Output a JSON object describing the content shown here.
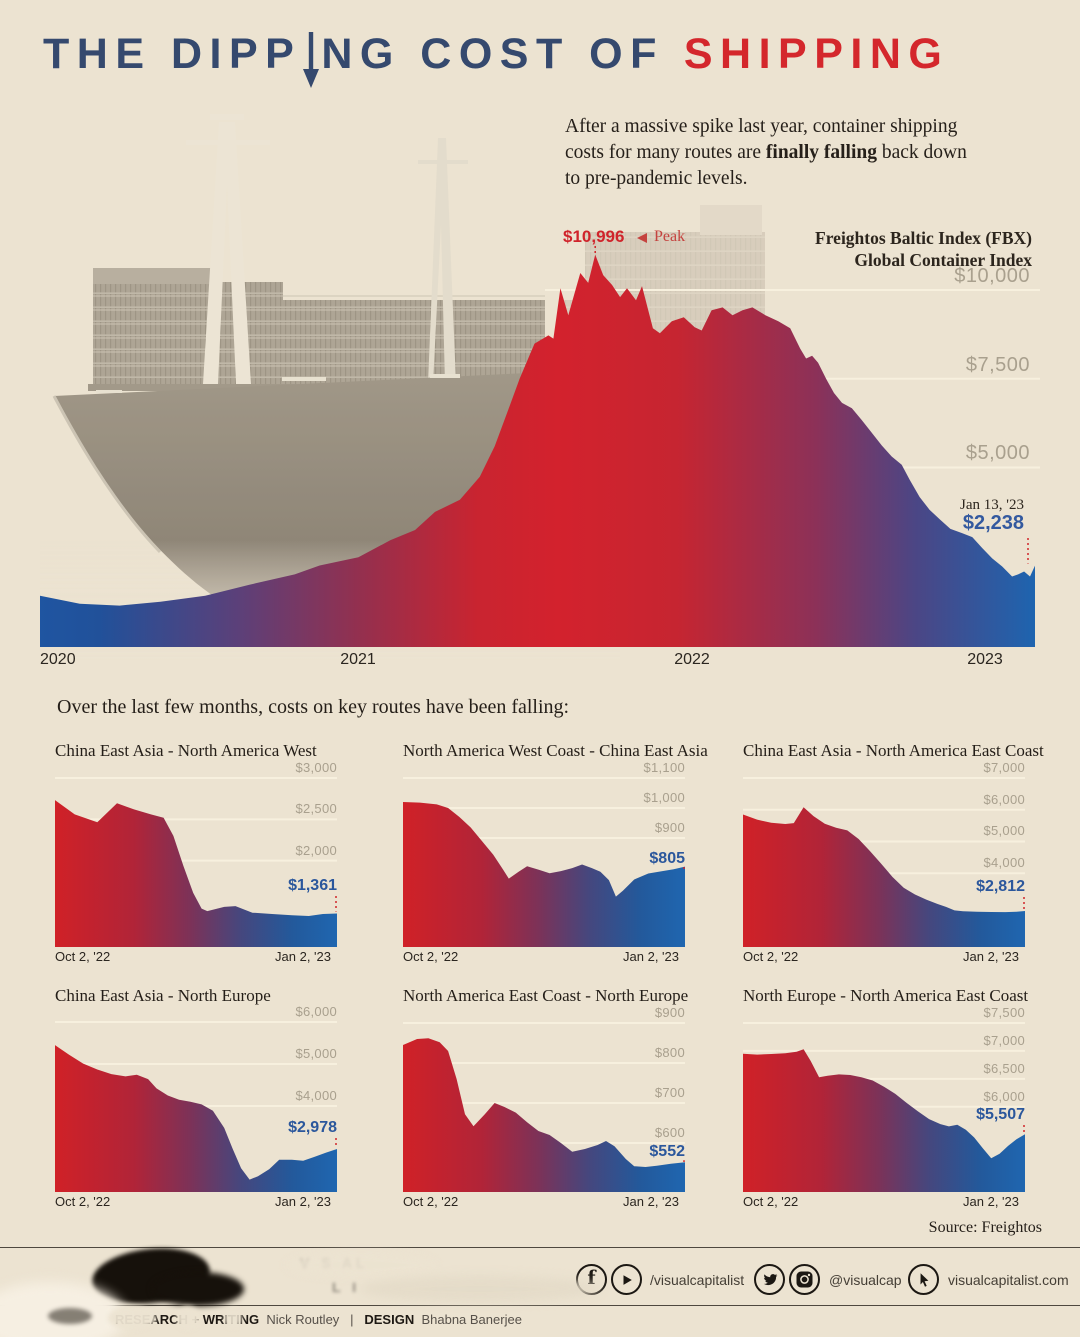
{
  "colors": {
    "background": "#ece3d1",
    "title_navy": "#35496e",
    "accent_red": "#d4272c",
    "value_blue": "#2b579c",
    "grid_label_gray": "#a9a08e",
    "area_blue": "#1e64af",
    "area_red": "#d3222d"
  },
  "title": {
    "part1": "THE DIPP",
    "part2": "NG COST OF",
    "part3": "SHIPPING"
  },
  "intro": {
    "line1": "After a massive spike last year, container shipping",
    "line2_pre": "costs for many routes are ",
    "line2_bold": "finally falling",
    "line2_post": " back down",
    "line3": "to pre-pandemic levels."
  },
  "routes_heading": "Over the last few months, costs on key routes have been falling:",
  "footer": {
    "source": "Source: Freightos",
    "social": {
      "group1_handle": "/visualcapitalist",
      "group2_handle": "@visualcap",
      "group3_handle": "visualcapitalist.com"
    },
    "credits": {
      "role1": "RESEARCH + WRITING",
      "name1": "Nick Routley",
      "divider": "|",
      "role2": "DESIGN",
      "name2": "Bhabna Banerjee"
    }
  },
  "chart_data": [
    {
      "type": "area",
      "title_line1": "Freightos Baltic Index (FBX)",
      "title_line2": "Global Container Index",
      "peak": {
        "label": "$10,996",
        "tag": "Peak",
        "value": 10996,
        "frac": 0.558
      },
      "end": {
        "date": "Jan 13, '23",
        "label": "$2,238",
        "value": 2238
      },
      "grid_values": [
        10000,
        7500,
        5000
      ],
      "grid_labels": [
        "$10,000",
        "$7,500",
        "$5,000"
      ],
      "x_tick_labels": [
        "2020",
        "2021",
        "2022",
        "2023"
      ],
      "ylim": [
        0,
        11500
      ],
      "points": [
        [
          0,
          1390
        ],
        [
          0.04,
          1160
        ],
        [
          0.08,
          1110
        ],
        [
          0.121,
          1220
        ],
        [
          0.166,
          1390
        ],
        [
          0.211,
          1700
        ],
        [
          0.256,
          1990
        ],
        [
          0.281,
          2240
        ],
        [
          0.32,
          2470
        ],
        [
          0.352,
          2950
        ],
        [
          0.377,
          3240
        ],
        [
          0.397,
          3750
        ],
        [
          0.422,
          4090
        ],
        [
          0.442,
          4740
        ],
        [
          0.457,
          5600
        ],
        [
          0.472,
          6730
        ],
        [
          0.482,
          7500
        ],
        [
          0.497,
          8490
        ],
        [
          0.511,
          8720
        ],
        [
          0.516,
          8630
        ],
        [
          0.523,
          10050
        ],
        [
          0.531,
          9290
        ],
        [
          0.543,
          10480
        ],
        [
          0.551,
          10200
        ],
        [
          0.558,
          10996
        ],
        [
          0.566,
          10420
        ],
        [
          0.575,
          10140
        ],
        [
          0.583,
          9800
        ],
        [
          0.59,
          10050
        ],
        [
          0.599,
          9710
        ],
        [
          0.605,
          10110
        ],
        [
          0.616,
          8920
        ],
        [
          0.623,
          8780
        ],
        [
          0.635,
          9120
        ],
        [
          0.647,
          9230
        ],
        [
          0.658,
          8950
        ],
        [
          0.665,
          8860
        ],
        [
          0.675,
          9430
        ],
        [
          0.686,
          9510
        ],
        [
          0.696,
          9290
        ],
        [
          0.706,
          9430
        ],
        [
          0.716,
          9510
        ],
        [
          0.729,
          9290
        ],
        [
          0.742,
          9120
        ],
        [
          0.754,
          8920
        ],
        [
          0.764,
          8350
        ],
        [
          0.77,
          8070
        ],
        [
          0.776,
          8150
        ],
        [
          0.782,
          7950
        ],
        [
          0.79,
          7500
        ],
        [
          0.798,
          7100
        ],
        [
          0.806,
          6820
        ],
        [
          0.816,
          6670
        ],
        [
          0.826,
          6330
        ],
        [
          0.834,
          6050
        ],
        [
          0.846,
          5620
        ],
        [
          0.856,
          5310
        ],
        [
          0.866,
          5080
        ],
        [
          0.874,
          4660
        ],
        [
          0.884,
          4170
        ],
        [
          0.894,
          3810
        ],
        [
          0.905,
          3520
        ],
        [
          0.915,
          3270
        ],
        [
          0.927,
          3150
        ],
        [
          0.937,
          3040
        ],
        [
          0.947,
          2730
        ],
        [
          0.957,
          2440
        ],
        [
          0.967,
          2210
        ],
        [
          0.977,
          1930
        ],
        [
          0.983,
          1990
        ],
        [
          0.989,
          2070
        ],
        [
          0.995,
          1930
        ],
        [
          1,
          2238
        ]
      ]
    },
    {
      "type": "area",
      "title": "China East Asia - North America West",
      "grid_values": [
        3000,
        2500,
        2000
      ],
      "grid_labels": [
        "$3,000",
        "$2,500",
        "$2,000"
      ],
      "end_label": "$1,361",
      "end_value": 1361,
      "x_left": "Oct 2, '22",
      "x_right": "Jan 2, '23",
      "points": [
        [
          0,
          2732
        ],
        [
          0.07,
          2560
        ],
        [
          0.15,
          2465
        ],
        [
          0.22,
          2695
        ],
        [
          0.28,
          2620
        ],
        [
          0.34,
          2560
        ],
        [
          0.385,
          2520
        ],
        [
          0.42,
          2300
        ],
        [
          0.455,
          1940
        ],
        [
          0.49,
          1610
        ],
        [
          0.52,
          1420
        ],
        [
          0.54,
          1390
        ],
        [
          0.6,
          1440
        ],
        [
          0.64,
          1450
        ],
        [
          0.7,
          1370
        ],
        [
          0.77,
          1355
        ],
        [
          0.84,
          1340
        ],
        [
          0.9,
          1330
        ],
        [
          0.95,
          1355
        ],
        [
          1,
          1361
        ]
      ]
    },
    {
      "type": "area",
      "title": "North America West Coast - China East Asia",
      "grid_values": [
        1100,
        1000,
        900
      ],
      "grid_labels": [
        "$1,100",
        "$1,000",
        "$900"
      ],
      "end_label": "$805",
      "end_value": 805,
      "x_left": "Oct 2, '22",
      "x_right": "Jan 2, '23",
      "points": [
        [
          0,
          1020
        ],
        [
          0.06,
          1018
        ],
        [
          0.12,
          1012
        ],
        [
          0.16,
          1000
        ],
        [
          0.2,
          970
        ],
        [
          0.24,
          935
        ],
        [
          0.28,
          890
        ],
        [
          0.32,
          845
        ],
        [
          0.355,
          795
        ],
        [
          0.375,
          765
        ],
        [
          0.41,
          788
        ],
        [
          0.44,
          806
        ],
        [
          0.48,
          795
        ],
        [
          0.52,
          783
        ],
        [
          0.56,
          790
        ],
        [
          0.6,
          800
        ],
        [
          0.635,
          812
        ],
        [
          0.67,
          800
        ],
        [
          0.7,
          788
        ],
        [
          0.73,
          760
        ],
        [
          0.755,
          705
        ],
        [
          0.78,
          725
        ],
        [
          0.82,
          762
        ],
        [
          0.87,
          782
        ],
        [
          0.92,
          790
        ],
        [
          0.96,
          796
        ],
        [
          1,
          805
        ]
      ]
    },
    {
      "type": "area",
      "title": "China East Asia - North America East Coast",
      "grid_values": [
        7000,
        6000,
        5000,
        4000
      ],
      "grid_labels": [
        "$7,000",
        "$6,000",
        "$5,000",
        "$4,000"
      ],
      "end_label": "$2,812",
      "end_value": 2812,
      "x_left": "Oct 2, '22",
      "x_right": "Jan 2, '23",
      "points": [
        [
          0,
          5850
        ],
        [
          0.05,
          5690
        ],
        [
          0.1,
          5590
        ],
        [
          0.15,
          5550
        ],
        [
          0.18,
          5580
        ],
        [
          0.215,
          6080
        ],
        [
          0.25,
          5800
        ],
        [
          0.29,
          5560
        ],
        [
          0.33,
          5430
        ],
        [
          0.37,
          5350
        ],
        [
          0.41,
          5080
        ],
        [
          0.45,
          4700
        ],
        [
          0.49,
          4300
        ],
        [
          0.53,
          3880
        ],
        [
          0.57,
          3540
        ],
        [
          0.61,
          3330
        ],
        [
          0.65,
          3170
        ],
        [
          0.69,
          3030
        ],
        [
          0.72,
          2940
        ],
        [
          0.75,
          2830
        ],
        [
          0.78,
          2800
        ],
        [
          0.83,
          2790
        ],
        [
          0.88,
          2780
        ],
        [
          0.93,
          2775
        ],
        [
          0.97,
          2790
        ],
        [
          1,
          2812
        ]
      ]
    },
    {
      "type": "area",
      "title": "China East Asia - North Europe",
      "grid_values": [
        6000,
        5000,
        4000
      ],
      "grid_labels": [
        "$6,000",
        "$5,000",
        "$4,000"
      ],
      "end_label": "$2,978",
      "end_value": 2978,
      "x_left": "Oct 2, '22",
      "x_right": "Jan 2, '23",
      "points": [
        [
          0,
          5450
        ],
        [
          0.05,
          5220
        ],
        [
          0.1,
          5010
        ],
        [
          0.15,
          4870
        ],
        [
          0.2,
          4760
        ],
        [
          0.25,
          4705
        ],
        [
          0.29,
          4745
        ],
        [
          0.33,
          4640
        ],
        [
          0.36,
          4420
        ],
        [
          0.4,
          4250
        ],
        [
          0.44,
          4150
        ],
        [
          0.48,
          4100
        ],
        [
          0.52,
          4040
        ],
        [
          0.56,
          3890
        ],
        [
          0.6,
          3480
        ],
        [
          0.63,
          2980
        ],
        [
          0.66,
          2520
        ],
        [
          0.69,
          2250
        ],
        [
          0.72,
          2330
        ],
        [
          0.76,
          2500
        ],
        [
          0.795,
          2720
        ],
        [
          0.84,
          2720
        ],
        [
          0.88,
          2700
        ],
        [
          0.92,
          2790
        ],
        [
          0.96,
          2890
        ],
        [
          1,
          2978
        ]
      ]
    },
    {
      "type": "area",
      "title": "North America East Coast - North Europe",
      "grid_values": [
        900,
        800,
        700,
        600
      ],
      "grid_labels": [
        "$900",
        "$800",
        "$700",
        "$600"
      ],
      "end_label": "$552",
      "end_value": 552,
      "x_left": "Oct 2, '22",
      "x_right": "Jan 2, '23",
      "points": [
        [
          0,
          845
        ],
        [
          0.05,
          860
        ],
        [
          0.09,
          862
        ],
        [
          0.13,
          852
        ],
        [
          0.16,
          830
        ],
        [
          0.19,
          760
        ],
        [
          0.22,
          672
        ],
        [
          0.25,
          642
        ],
        [
          0.29,
          672
        ],
        [
          0.325,
          700
        ],
        [
          0.36,
          690
        ],
        [
          0.4,
          676
        ],
        [
          0.44,
          652
        ],
        [
          0.48,
          630
        ],
        [
          0.52,
          620
        ],
        [
          0.56,
          600
        ],
        [
          0.6,
          578
        ],
        [
          0.645,
          585
        ],
        [
          0.69,
          595
        ],
        [
          0.72,
          605
        ],
        [
          0.75,
          592
        ],
        [
          0.79,
          560
        ],
        [
          0.82,
          542
        ],
        [
          0.86,
          540
        ],
        [
          0.9,
          543
        ],
        [
          0.95,
          548
        ],
        [
          1,
          552
        ]
      ]
    },
    {
      "type": "area",
      "title": "North Europe - North America East Coast",
      "grid_values": [
        7500,
        7000,
        6500,
        6000
      ],
      "grid_labels": [
        "$7,500",
        "$7,000",
        "$6,500",
        "$6,000"
      ],
      "end_label": "$5,507",
      "end_value": 5507,
      "x_left": "Oct 2, '22",
      "x_right": "Jan 2, '23",
      "points": [
        [
          0,
          6950
        ],
        [
          0.05,
          6935
        ],
        [
          0.1,
          6945
        ],
        [
          0.15,
          6960
        ],
        [
          0.19,
          6985
        ],
        [
          0.215,
          7030
        ],
        [
          0.24,
          6820
        ],
        [
          0.27,
          6530
        ],
        [
          0.3,
          6555
        ],
        [
          0.34,
          6580
        ],
        [
          0.38,
          6570
        ],
        [
          0.42,
          6530
        ],
        [
          0.46,
          6470
        ],
        [
          0.5,
          6360
        ],
        [
          0.54,
          6230
        ],
        [
          0.58,
          6070
        ],
        [
          0.62,
          5920
        ],
        [
          0.66,
          5780
        ],
        [
          0.7,
          5690
        ],
        [
          0.73,
          5650
        ],
        [
          0.76,
          5680
        ],
        [
          0.79,
          5590
        ],
        [
          0.82,
          5450
        ],
        [
          0.85,
          5260
        ],
        [
          0.88,
          5080
        ],
        [
          0.91,
          5160
        ],
        [
          0.94,
          5300
        ],
        [
          0.97,
          5420
        ],
        [
          1,
          5507
        ]
      ]
    }
  ]
}
